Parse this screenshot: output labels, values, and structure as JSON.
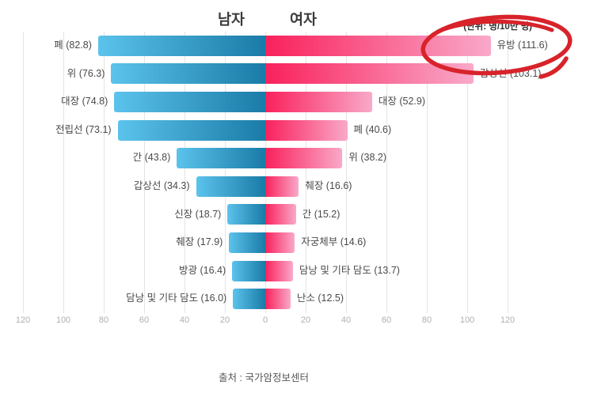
{
  "chart_data": {
    "type": "bar",
    "variant": "diverging-horizontal-tornado",
    "unit_label": "(단위: 명/10만 명)",
    "axis": {
      "max": 120,
      "tick_step": 20,
      "tick_labels": [
        "120",
        "100",
        "80",
        "60",
        "40",
        "20",
        "0",
        "20",
        "40",
        "60",
        "80",
        "100",
        "120"
      ],
      "grid": true,
      "grid_color": "#e6e4e1",
      "tick_color": "#b2afaa"
    },
    "series": [
      {
        "name": "남자",
        "side": "left",
        "color_tip": "#5bc3ec",
        "color_center": "#1a7ba7",
        "items": [
          {
            "label": "폐",
            "value": 82.8,
            "text": "폐 (82.8)"
          },
          {
            "label": "위",
            "value": 76.3,
            "text": "위 (76.3)"
          },
          {
            "label": "대장",
            "value": 74.8,
            "text": "대장 (74.8)"
          },
          {
            "label": "전립선",
            "value": 73.1,
            "text": "전립선 (73.1)"
          },
          {
            "label": "간",
            "value": 43.8,
            "text": "간 (43.8)"
          },
          {
            "label": "갑상선",
            "value": 34.3,
            "text": "갑상선 (34.3)"
          },
          {
            "label": "신장",
            "value": 18.7,
            "text": "신장 (18.7)"
          },
          {
            "label": "췌장",
            "value": 17.9,
            "text": "췌장 (17.9)"
          },
          {
            "label": "방광",
            "value": 16.4,
            "text": "방광 (16.4)"
          },
          {
            "label": "담낭 및 기타 담도",
            "value": 16.0,
            "text": "담낭 및 기타 담도 (16.0)"
          }
        ]
      },
      {
        "name": "여자",
        "side": "right",
        "color_tip": "#f9a9c9",
        "color_center": "#f9215c",
        "items": [
          {
            "label": "유방",
            "value": 111.6,
            "text": "유방 (111.6)"
          },
          {
            "label": "갑상선",
            "value": 103.1,
            "text": "갑상선 (103.1)"
          },
          {
            "label": "대장",
            "value": 52.9,
            "text": "대장 (52.9)"
          },
          {
            "label": "폐",
            "value": 40.6,
            "text": "폐 (40.6)"
          },
          {
            "label": "위",
            "value": 38.2,
            "text": "위 (38.2)"
          },
          {
            "label": "췌장",
            "value": 16.6,
            "text": "췌장 (16.6)"
          },
          {
            "label": "간",
            "value": 15.2,
            "text": "간 (15.2)"
          },
          {
            "label": "자궁체부",
            "value": 14.6,
            "text": "자궁체부 (14.6)"
          },
          {
            "label": "담낭 및 기타 담도",
            "value": 13.7,
            "text": "담낭 및 기타 담도 (13.7)"
          },
          {
            "label": "난소",
            "value": 12.5,
            "text": "난소 (12.5)"
          }
        ]
      }
    ],
    "annotation": {
      "shape": "hand-drawn-ellipse-with-tail",
      "color": "#d8232a",
      "highlights": "유방 (111.6)"
    }
  },
  "footer": {
    "source_text": "출처 : 국가암정보센터"
  }
}
